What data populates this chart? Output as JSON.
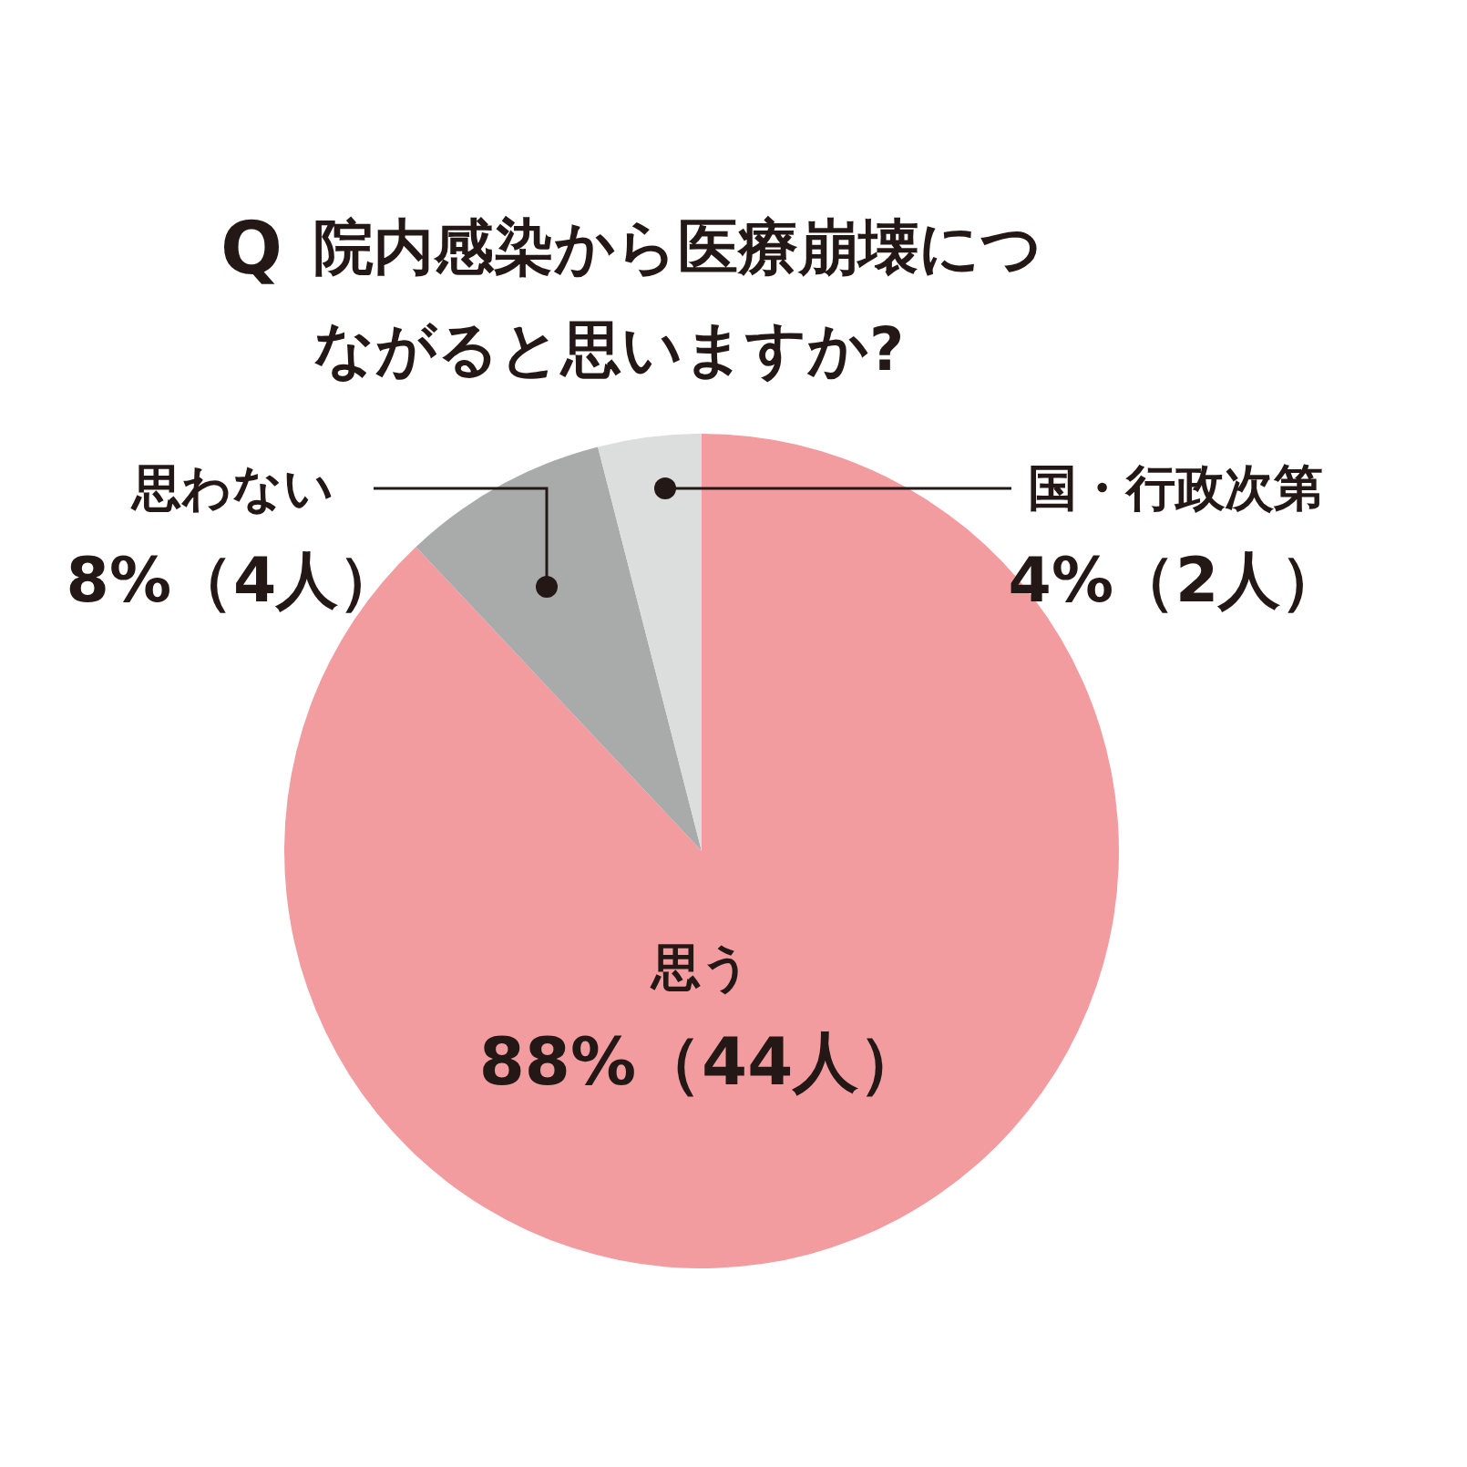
{
  "chart_data": {
    "type": "pie",
    "title": "Q 院内感染から医療崩壊につながると思いますか?",
    "categories": [
      "思う",
      "思わない",
      "国・行政次第"
    ],
    "values": [
      88,
      8,
      4
    ],
    "value_labels": [
      "88%（44人）",
      "8%（4人）",
      "4%（2人）"
    ],
    "colors": [
      "#f29ca0",
      "#a9aaaa",
      "#dcdddd"
    ]
  }
}
